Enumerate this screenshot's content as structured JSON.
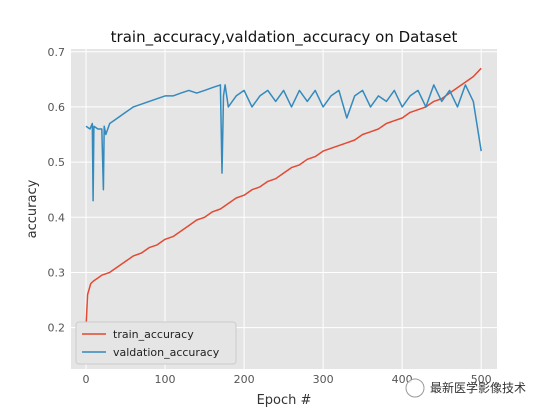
{
  "chart_data": {
    "type": "line",
    "title": "train_accuracy,valdation_accuracy on Dataset",
    "xlabel": "Epoch #",
    "ylabel": "accuracy",
    "xlim": [
      -19,
      520
    ],
    "ylim": [
      0.125,
      0.705
    ],
    "xticks": [
      0,
      100,
      200,
      300,
      400,
      500
    ],
    "yticks": [
      0.2,
      0.3,
      0.4,
      0.5,
      0.6,
      0.7
    ],
    "grid": true,
    "legend_position": "lower-left",
    "series": [
      {
        "name": "train_accuracy",
        "color": "#E24A33",
        "x": [
          0,
          1,
          2,
          4,
          6,
          10,
          15,
          20,
          30,
          40,
          50,
          60,
          70,
          80,
          90,
          100,
          110,
          120,
          130,
          140,
          150,
          160,
          170,
          180,
          190,
          200,
          210,
          220,
          230,
          240,
          250,
          260,
          270,
          280,
          290,
          300,
          310,
          320,
          330,
          340,
          350,
          360,
          370,
          380,
          390,
          400,
          410,
          420,
          430,
          440,
          450,
          460,
          470,
          480,
          490,
          500
        ],
        "values": [
          0.2,
          0.23,
          0.26,
          0.27,
          0.28,
          0.285,
          0.29,
          0.295,
          0.3,
          0.31,
          0.32,
          0.33,
          0.335,
          0.345,
          0.35,
          0.36,
          0.365,
          0.375,
          0.385,
          0.395,
          0.4,
          0.41,
          0.415,
          0.425,
          0.435,
          0.44,
          0.45,
          0.455,
          0.465,
          0.47,
          0.48,
          0.49,
          0.495,
          0.505,
          0.51,
          0.52,
          0.525,
          0.53,
          0.535,
          0.54,
          0.55,
          0.555,
          0.56,
          0.57,
          0.575,
          0.58,
          0.59,
          0.595,
          0.6,
          0.61,
          0.615,
          0.625,
          0.635,
          0.645,
          0.655,
          0.67
        ]
      },
      {
        "name": "valdation_accuracy",
        "color": "#348ABD",
        "x": [
          0,
          5,
          8,
          9,
          10,
          15,
          20,
          22,
          23,
          25,
          30,
          35,
          40,
          50,
          60,
          70,
          80,
          90,
          100,
          110,
          120,
          130,
          140,
          150,
          160,
          170,
          172,
          174,
          176,
          180,
          190,
          200,
          210,
          220,
          230,
          240,
          250,
          260,
          270,
          280,
          290,
          300,
          310,
          320,
          330,
          340,
          350,
          360,
          370,
          380,
          390,
          400,
          410,
          420,
          430,
          440,
          450,
          460,
          470,
          480,
          490,
          500
        ],
        "values": [
          0.565,
          0.56,
          0.57,
          0.43,
          0.565,
          0.56,
          0.56,
          0.45,
          0.565,
          0.55,
          0.57,
          0.575,
          0.58,
          0.59,
          0.6,
          0.605,
          0.61,
          0.615,
          0.62,
          0.62,
          0.625,
          0.63,
          0.625,
          0.63,
          0.635,
          0.64,
          0.48,
          0.62,
          0.64,
          0.6,
          0.62,
          0.63,
          0.6,
          0.62,
          0.63,
          0.61,
          0.63,
          0.6,
          0.63,
          0.61,
          0.63,
          0.6,
          0.62,
          0.63,
          0.58,
          0.62,
          0.63,
          0.6,
          0.62,
          0.61,
          0.63,
          0.6,
          0.62,
          0.63,
          0.6,
          0.64,
          0.61,
          0.63,
          0.6,
          0.64,
          0.61,
          0.52
        ]
      }
    ]
  },
  "watermark": {
    "text": "最新医学影像技术"
  }
}
